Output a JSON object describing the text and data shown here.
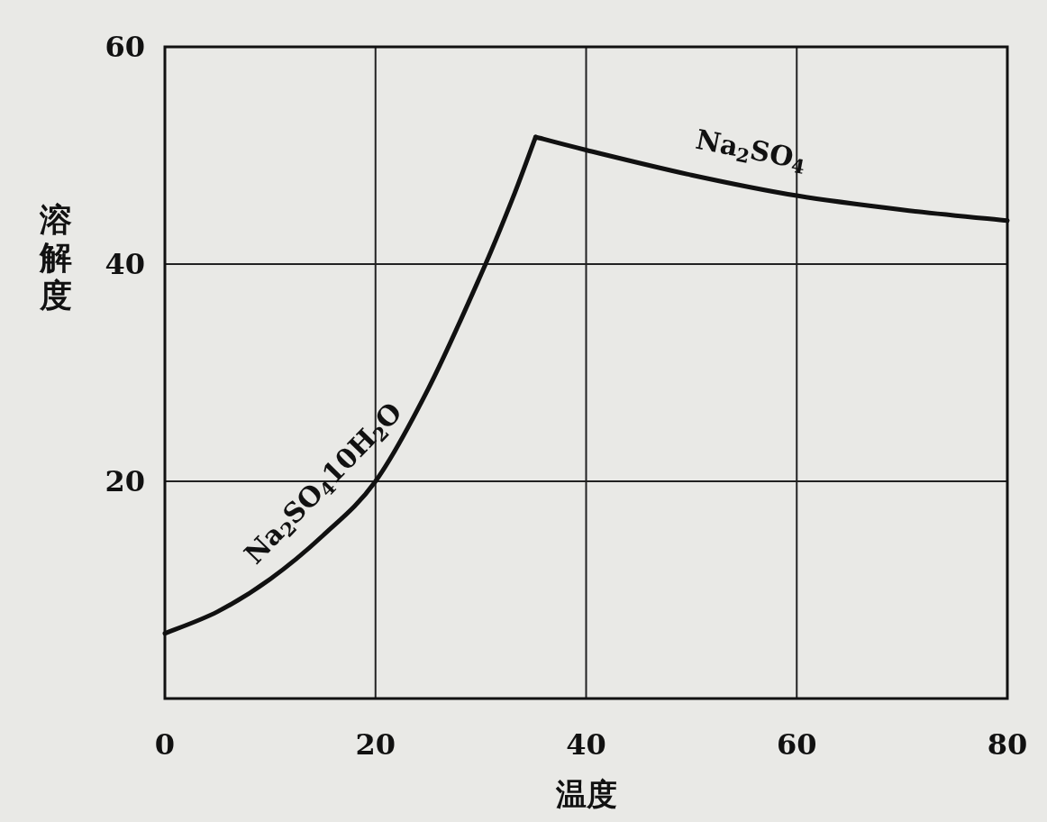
{
  "chart_data": {
    "type": "line",
    "xlabel": "温度",
    "ylabel": "溶解度",
    "xlim": [
      0,
      80
    ],
    "ylim": [
      0,
      60
    ],
    "xticks": [
      0,
      20,
      40,
      60,
      80
    ],
    "yticks": [
      {
        "value": 0,
        "label": null
      },
      20,
      40,
      60
    ],
    "grid": true,
    "legend": false,
    "marker": "none",
    "line_style": "solid",
    "series": [
      {
        "name": "Na$_{2}$SO$_{4}$10H$_{2}$O",
        "color": "#111111",
        "x": [
          0,
          5,
          10,
          15,
          20,
          25,
          30,
          33,
          35.2
        ],
        "values": [
          6,
          8,
          11,
          15,
          20,
          28.5,
          39,
          46,
          51.7
        ]
      },
      {
        "name": "Na$_{2}$SO$_{4}$",
        "color": "#111111",
        "x": [
          35.2,
          40,
          50,
          60,
          70,
          80
        ],
        "values": [
          51.7,
          50.5,
          48.2,
          46.3,
          45,
          44
        ]
      }
    ]
  }
}
